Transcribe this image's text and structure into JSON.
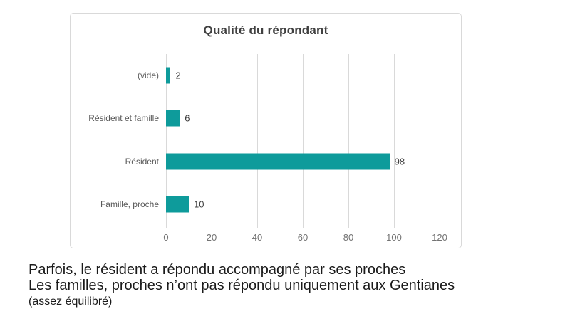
{
  "chart_data": {
    "type": "bar",
    "orientation": "horizontal",
    "title": "Qualité du répondant",
    "categories": [
      "(vide)",
      "Résident et famille",
      "Résident",
      "Famille, proche"
    ],
    "values": [
      2,
      6,
      98,
      10
    ],
    "data_labels": [
      "2",
      "6",
      "98",
      "10"
    ],
    "xlabel": "",
    "ylabel": "",
    "xticks": [
      0,
      20,
      40,
      60,
      80,
      100,
      120
    ],
    "xlim": [
      0,
      130
    ],
    "grid": true,
    "legend": false,
    "colors": {
      "bar": "#0e9b9b",
      "gridline": "#d9d9d9",
      "chart_border": "#d9d9d9",
      "title_text": "#404040",
      "category_text": "#595959",
      "tick_text": "#737373",
      "value_text": "#404040"
    }
  },
  "notes": {
    "line1": "Parfois, le résident a répondu accompagné par ses proches",
    "line2": "Les familles, proches n’ont pas répondu uniquement aux Gentianes",
    "line3": "(assez équilibré)"
  }
}
